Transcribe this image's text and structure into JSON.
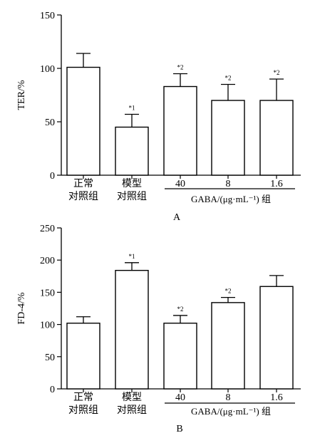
{
  "chart_data": [
    {
      "type": "bar",
      "panel_label": "A",
      "ylabel": "TER/%",
      "ylim": [
        0,
        150
      ],
      "yticks": [
        0,
        50,
        100,
        150
      ],
      "categories": [
        [
          "正常",
          "对照组"
        ],
        [
          "模型",
          "对照组"
        ],
        [
          "40"
        ],
        [
          "8"
        ],
        [
          "1.6"
        ]
      ],
      "values": [
        101,
        45,
        83,
        70,
        70
      ],
      "errors": [
        13,
        12,
        12,
        15,
        20
      ],
      "annotations": [
        "",
        "*1",
        "*2",
        "*2",
        "*2"
      ],
      "group_label": "GABA/(μg·mL⁻¹) 组"
    },
    {
      "type": "bar",
      "panel_label": "B",
      "ylabel": "FD-4/%",
      "ylim": [
        0,
        250
      ],
      "yticks": [
        0,
        50,
        100,
        150,
        200,
        250
      ],
      "categories": [
        [
          "正常",
          "对照组"
        ],
        [
          "模型",
          "对照组"
        ],
        [
          "40"
        ],
        [
          "8"
        ],
        [
          "1.6"
        ]
      ],
      "values": [
        102,
        184,
        102,
        134,
        159
      ],
      "errors": [
        10,
        12,
        12,
        8,
        17
      ],
      "annotations": [
        "",
        "*1",
        "*2",
        "*2",
        ""
      ],
      "group_label": "GABA/(μg·mL⁻¹) 组"
    }
  ]
}
